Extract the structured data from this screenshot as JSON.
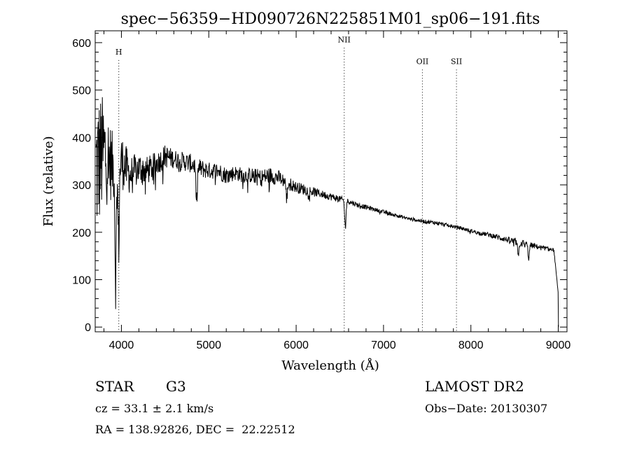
{
  "chart_data": {
    "type": "line",
    "title": "spec−56359−HD090726N225851M01_sp06−191.fits",
    "xlabel": "Wavelength (Å)",
    "ylabel": "Flux (relative)",
    "xlim": [
      3700,
      9100
    ],
    "ylim": [
      -10,
      625
    ],
    "xticks": [
      4000,
      5000,
      6000,
      7000,
      8000,
      9000
    ],
    "yticks": [
      0,
      100,
      200,
      300,
      400,
      500,
      600
    ],
    "grid": false,
    "lines": [
      {
        "label": "H",
        "x": 3970,
        "label_y": 575
      },
      {
        "label": "NII",
        "x": 6550,
        "label_y": 601
      },
      {
        "label": "OII",
        "x": 7445,
        "label_y": 555
      },
      {
        "label": "SII",
        "x": 7835,
        "label_y": 555
      }
    ],
    "series": [
      {
        "x": [
          3700,
          3800,
          3900,
          4000,
          4100,
          4200,
          4300,
          4400,
          4500,
          4600,
          4700,
          4800,
          4900,
          5000,
          5100,
          5200,
          5300,
          5400,
          5500,
          5600,
          5700,
          5800,
          5900,
          6000,
          6100,
          6200,
          6300,
          6400,
          6500,
          6600,
          6700,
          6800,
          6900,
          7000,
          7100,
          7200,
          7300,
          7400,
          7500,
          7600,
          7700,
          7800,
          7900,
          8000,
          8100,
          8200,
          8300,
          8400,
          8500,
          8600,
          8700,
          8800,
          8900,
          8950,
          9000
        ],
        "y": [
          330,
          370,
          340,
          350,
          320,
          335,
          330,
          345,
          360,
          355,
          350,
          345,
          335,
          330,
          330,
          320,
          325,
          320,
          320,
          315,
          320,
          315,
          305,
          295,
          290,
          285,
          280,
          275,
          270,
          265,
          258,
          253,
          248,
          243,
          238,
          233,
          228,
          225,
          222,
          220,
          216,
          212,
          208,
          203,
          198,
          195,
          190,
          185,
          180,
          176,
          172,
          168,
          164,
          162,
          70
        ],
        "noise": [
          170,
          120,
          70,
          60,
          40,
          35,
          30,
          25,
          25,
          20,
          20,
          20,
          20,
          18,
          18,
          18,
          16,
          16,
          16,
          18,
          18,
          16,
          14,
          12,
          12,
          10,
          8,
          8,
          7,
          6,
          5,
          5,
          4,
          4,
          4,
          4,
          4,
          4,
          4,
          4,
          4,
          4,
          4,
          4,
          4,
          5,
          6,
          6,
          8,
          8,
          6,
          5,
          4,
          4,
          0
        ],
        "dips": [
          {
            "x": 3934,
            "depth": 240
          },
          {
            "x": 3968,
            "depth": 170
          },
          {
            "x": 4861,
            "depth": 75
          },
          {
            "x": 6563,
            "depth": 55
          },
          {
            "x": 5893,
            "depth": 35
          },
          {
            "x": 8542,
            "depth": 30
          },
          {
            "x": 8662,
            "depth": 28
          }
        ]
      }
    ]
  },
  "info": {
    "object_class": "STAR",
    "subclass": "G3",
    "cz": "cz = 33.1 ± 2.1 km/s",
    "coords": "RA = 138.92826, DEC =  22.22512",
    "survey": "LAMOST DR2",
    "obs_date": "Obs−Date: 20130307"
  }
}
